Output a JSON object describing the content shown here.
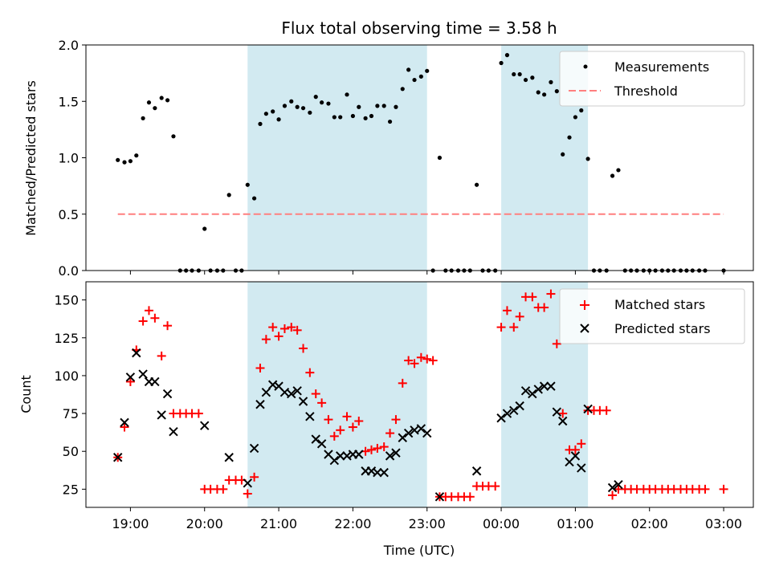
{
  "chart_data": {
    "type": "scatter",
    "title": "Flux total observing time = 3.58 h",
    "xlabel": "Time (UTC)",
    "x_ticks": [
      "19:00",
      "20:00",
      "21:00",
      "22:00",
      "23:00",
      "00:00",
      "01:00",
      "02:00",
      "03:00"
    ],
    "x_range_hours": [
      18.4,
      27.4
    ],
    "observing_windows_hours": [
      [
        20.58,
        23.0
      ],
      [
        24.0,
        25.17
      ]
    ],
    "window_color": "#add8e6",
    "top_panel": {
      "ylabel": "Matched/Predicted stars",
      "ylim": [
        0,
        2.0
      ],
      "yticks": [
        "0.0",
        "0.5",
        "1.0",
        "1.5",
        "2.0"
      ],
      "legend": {
        "position": "top-right",
        "entries": [
          "Measurements",
          "Threshold"
        ]
      },
      "threshold": {
        "name": "Threshold",
        "value": 0.5,
        "x_range_hours": [
          18.83,
          27.0
        ],
        "color": "#ff7f7f"
      },
      "series": [
        {
          "name": "Measurements",
          "color": "#000000",
          "points": [
            [
              18.83,
              0.98
            ],
            [
              18.92,
              0.96
            ],
            [
              19.0,
              0.97
            ],
            [
              19.08,
              1.02
            ],
            [
              19.17,
              1.35
            ],
            [
              19.25,
              1.49
            ],
            [
              19.33,
              1.44
            ],
            [
              19.42,
              1.53
            ],
            [
              19.5,
              1.51
            ],
            [
              19.58,
              1.19
            ],
            [
              19.67,
              0.0
            ],
            [
              19.75,
              0.0
            ],
            [
              19.83,
              0.0
            ],
            [
              19.92,
              0.0
            ],
            [
              20.0,
              0.37
            ],
            [
              20.08,
              0.0
            ],
            [
              20.17,
              0.0
            ],
            [
              20.25,
              0.0
            ],
            [
              20.33,
              0.67
            ],
            [
              20.42,
              0.0
            ],
            [
              20.5,
              0.0
            ],
            [
              20.58,
              0.76
            ],
            [
              20.67,
              0.64
            ],
            [
              20.75,
              1.3
            ],
            [
              20.83,
              1.39
            ],
            [
              20.92,
              1.41
            ],
            [
              21.0,
              1.34
            ],
            [
              21.08,
              1.46
            ],
            [
              21.17,
              1.5
            ],
            [
              21.25,
              1.45
            ],
            [
              21.33,
              1.44
            ],
            [
              21.42,
              1.4
            ],
            [
              21.5,
              1.54
            ],
            [
              21.58,
              1.49
            ],
            [
              21.67,
              1.48
            ],
            [
              21.75,
              1.36
            ],
            [
              21.83,
              1.36
            ],
            [
              21.92,
              1.56
            ],
            [
              22.0,
              1.37
            ],
            [
              22.08,
              1.45
            ],
            [
              22.17,
              1.35
            ],
            [
              22.25,
              1.37
            ],
            [
              22.33,
              1.46
            ],
            [
              22.42,
              1.46
            ],
            [
              22.5,
              1.32
            ],
            [
              22.58,
              1.45
            ],
            [
              22.67,
              1.61
            ],
            [
              22.75,
              1.78
            ],
            [
              22.83,
              1.69
            ],
            [
              22.92,
              1.72
            ],
            [
              23.0,
              1.77
            ],
            [
              23.08,
              0.0
            ],
            [
              23.17,
              1.0
            ],
            [
              23.25,
              0.0
            ],
            [
              23.33,
              0.0
            ],
            [
              23.42,
              0.0
            ],
            [
              23.5,
              0.0
            ],
            [
              23.58,
              0.0
            ],
            [
              23.67,
              0.76
            ],
            [
              23.75,
              0.0
            ],
            [
              23.83,
              0.0
            ],
            [
              23.92,
              0.0
            ],
            [
              24.0,
              1.84
            ],
            [
              24.08,
              1.91
            ],
            [
              24.17,
              1.74
            ],
            [
              24.25,
              1.74
            ],
            [
              24.33,
              1.69
            ],
            [
              24.42,
              1.71
            ],
            [
              24.5,
              1.58
            ],
            [
              24.58,
              1.56
            ],
            [
              24.67,
              1.67
            ],
            [
              24.75,
              1.59
            ],
            [
              24.83,
              1.03
            ],
            [
              24.92,
              1.18
            ],
            [
              25.0,
              1.36
            ],
            [
              25.08,
              1.42
            ],
            [
              25.17,
              0.99
            ],
            [
              25.25,
              0.0
            ],
            [
              25.33,
              0.0
            ],
            [
              25.42,
              0.0
            ],
            [
              25.5,
              0.84
            ],
            [
              25.58,
              0.89
            ],
            [
              25.67,
              0.0
            ],
            [
              25.75,
              0.0
            ],
            [
              25.83,
              0.0
            ],
            [
              25.92,
              0.0
            ],
            [
              26.0,
              0.0
            ],
            [
              26.08,
              0.0
            ],
            [
              26.17,
              0.0
            ],
            [
              26.25,
              0.0
            ],
            [
              26.33,
              0.0
            ],
            [
              26.42,
              0.0
            ],
            [
              26.5,
              0.0
            ],
            [
              26.58,
              0.0
            ],
            [
              26.67,
              0.0
            ],
            [
              26.75,
              0.0
            ],
            [
              27.0,
              0.0
            ]
          ]
        }
      ]
    },
    "bottom_panel": {
      "ylabel": "Count",
      "ylim": [
        13,
        162
      ],
      "yticks": [
        "25",
        "50",
        "75",
        "100",
        "125",
        "150"
      ],
      "legend": {
        "position": "top-right",
        "entries": [
          "Matched stars",
          "Predicted stars"
        ]
      },
      "series": [
        {
          "name": "Matched stars",
          "marker": "plus",
          "color": "#ff0000",
          "points": [
            [
              18.83,
              46
            ],
            [
              18.92,
              66
            ],
            [
              19.0,
              96
            ],
            [
              19.08,
              117
            ],
            [
              19.17,
              136
            ],
            [
              19.25,
              143
            ],
            [
              19.33,
              138
            ],
            [
              19.42,
              113
            ],
            [
              19.5,
              133
            ],
            [
              19.58,
              75
            ],
            [
              19.67,
              75
            ],
            [
              19.75,
              75
            ],
            [
              19.83,
              75
            ],
            [
              19.92,
              75
            ],
            [
              20.0,
              25
            ],
            [
              20.08,
              25
            ],
            [
              20.17,
              25
            ],
            [
              20.25,
              25
            ],
            [
              20.33,
              31
            ],
            [
              20.42,
              31
            ],
            [
              20.5,
              31
            ],
            [
              20.58,
              22
            ],
            [
              20.67,
              33
            ],
            [
              20.75,
              105
            ],
            [
              20.83,
              124
            ],
            [
              20.92,
              132
            ],
            [
              21.0,
              126
            ],
            [
              21.08,
              131
            ],
            [
              21.17,
              132
            ],
            [
              21.25,
              130
            ],
            [
              21.33,
              118
            ],
            [
              21.42,
              102
            ],
            [
              21.5,
              88
            ],
            [
              21.58,
              82
            ],
            [
              21.67,
              71
            ],
            [
              21.75,
              60
            ],
            [
              21.83,
              64
            ],
            [
              21.92,
              73
            ],
            [
              22.0,
              66
            ],
            [
              22.08,
              70
            ],
            [
              22.17,
              50
            ],
            [
              22.25,
              51
            ],
            [
              22.33,
              52
            ],
            [
              22.42,
              53
            ],
            [
              22.5,
              62
            ],
            [
              22.58,
              71
            ],
            [
              22.67,
              95
            ],
            [
              22.75,
              110
            ],
            [
              22.83,
              108
            ],
            [
              22.92,
              112
            ],
            [
              23.0,
              111
            ],
            [
              23.08,
              110
            ],
            [
              23.17,
              20
            ],
            [
              23.25,
              20
            ],
            [
              23.33,
              20
            ],
            [
              23.42,
              20
            ],
            [
              23.5,
              20
            ],
            [
              23.58,
              20
            ],
            [
              23.67,
              27
            ],
            [
              23.75,
              27
            ],
            [
              23.83,
              27
            ],
            [
              23.92,
              27
            ],
            [
              24.0,
              132
            ],
            [
              24.08,
              143
            ],
            [
              24.17,
              132
            ],
            [
              24.25,
              139
            ],
            [
              24.33,
              152
            ],
            [
              24.42,
              152
            ],
            [
              24.5,
              145
            ],
            [
              24.58,
              145
            ],
            [
              24.67,
              154
            ],
            [
              24.75,
              121
            ],
            [
              24.83,
              75
            ],
            [
              24.92,
              51
            ],
            [
              25.0,
              51
            ],
            [
              25.08,
              55
            ],
            [
              25.17,
              77
            ],
            [
              25.25,
              77
            ],
            [
              25.33,
              77
            ],
            [
              25.42,
              77
            ],
            [
              25.5,
              21
            ],
            [
              25.58,
              25
            ],
            [
              25.67,
              25
            ],
            [
              25.75,
              25
            ],
            [
              25.83,
              25
            ],
            [
              25.92,
              25
            ],
            [
              26.0,
              25
            ],
            [
              26.08,
              25
            ],
            [
              26.17,
              25
            ],
            [
              26.25,
              25
            ],
            [
              26.33,
              25
            ],
            [
              26.42,
              25
            ],
            [
              26.5,
              25
            ],
            [
              26.58,
              25
            ],
            [
              26.67,
              25
            ],
            [
              26.75,
              25
            ],
            [
              27.0,
              25
            ]
          ]
        },
        {
          "name": "Predicted stars",
          "marker": "x",
          "color": "#000000",
          "points": [
            [
              18.83,
              46
            ],
            [
              18.92,
              69
            ],
            [
              19.0,
              99
            ],
            [
              19.08,
              115
            ],
            [
              19.17,
              101
            ],
            [
              19.25,
              96
            ],
            [
              19.33,
              96
            ],
            [
              19.42,
              74
            ],
            [
              19.5,
              88
            ],
            [
              19.58,
              63
            ],
            [
              20.0,
              67
            ],
            [
              20.33,
              46
            ],
            [
              20.58,
              29
            ],
            [
              20.67,
              52
            ],
            [
              20.75,
              81
            ],
            [
              20.83,
              89
            ],
            [
              20.92,
              94
            ],
            [
              21.0,
              93
            ],
            [
              21.08,
              89
            ],
            [
              21.17,
              88
            ],
            [
              21.25,
              90
            ],
            [
              21.33,
              83
            ],
            [
              21.42,
              73
            ],
            [
              21.5,
              58
            ],
            [
              21.58,
              55
            ],
            [
              21.67,
              48
            ],
            [
              21.75,
              44
            ],
            [
              21.83,
              47
            ],
            [
              21.92,
              47
            ],
            [
              22.0,
              48
            ],
            [
              22.08,
              48
            ],
            [
              22.17,
              37
            ],
            [
              22.25,
              37
            ],
            [
              22.33,
              36
            ],
            [
              22.42,
              36
            ],
            [
              22.5,
              47
            ],
            [
              22.58,
              49
            ],
            [
              22.67,
              59
            ],
            [
              22.75,
              62
            ],
            [
              22.83,
              64
            ],
            [
              22.92,
              65
            ],
            [
              23.0,
              62
            ],
            [
              23.17,
              20
            ],
            [
              23.67,
              37
            ],
            [
              24.0,
              72
            ],
            [
              24.08,
              75
            ],
            [
              24.17,
              77
            ],
            [
              24.25,
              80
            ],
            [
              24.33,
              90
            ],
            [
              24.42,
              88
            ],
            [
              24.5,
              91
            ],
            [
              24.58,
              93
            ],
            [
              24.67,
              93
            ],
            [
              24.75,
              76
            ],
            [
              24.83,
              70
            ],
            [
              24.92,
              43
            ],
            [
              25.0,
              47
            ],
            [
              25.08,
              39
            ],
            [
              25.17,
              78
            ],
            [
              25.5,
              26
            ],
            [
              25.58,
              28
            ]
          ]
        }
      ]
    }
  }
}
